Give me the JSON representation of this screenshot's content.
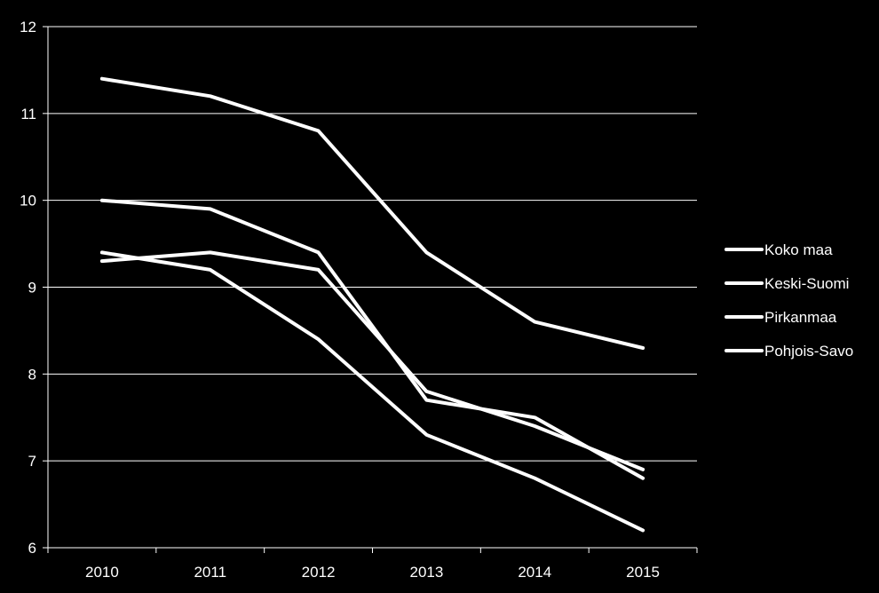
{
  "chart_data": {
    "type": "line",
    "title": "",
    "xlabel": "",
    "ylabel": "",
    "categories": [
      "2010",
      "2011",
      "2012",
      "2013",
      "2014",
      "2015"
    ],
    "ylim": [
      6,
      12
    ],
    "yticks": [
      "6",
      "7",
      "8",
      "9",
      "10",
      "11",
      "12"
    ],
    "grid": true,
    "legend_position": "right",
    "series": [
      {
        "name": "Koko maa",
        "values": [
          11.4,
          11.2,
          10.8,
          9.4,
          8.6,
          8.3
        ]
      },
      {
        "name": "Keski-Suomi",
        "values": [
          10.0,
          9.9,
          9.4,
          7.7,
          7.5,
          6.8
        ]
      },
      {
        "name": "Pirkanmaa",
        "values": [
          9.3,
          9.4,
          9.2,
          7.8,
          7.4,
          6.9
        ]
      },
      {
        "name": "Pohjois-Savo",
        "values": [
          9.4,
          9.2,
          8.4,
          7.3,
          6.8,
          6.2
        ]
      }
    ],
    "colors": {
      "background": "#000000",
      "line": "#ffffff",
      "grid": "#ffffff",
      "text": "#ffffff"
    }
  }
}
